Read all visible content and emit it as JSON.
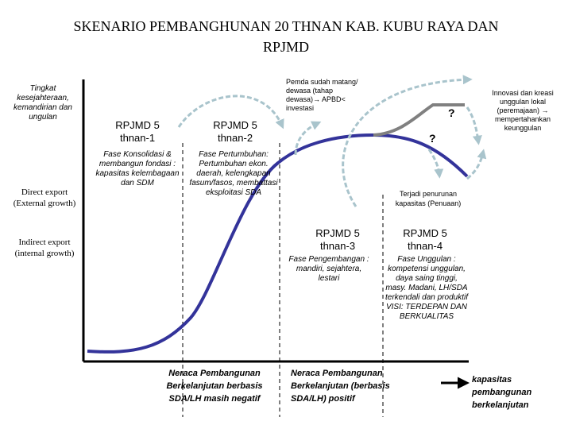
{
  "title_line1": "SKENARIO PEMBANGHUNAN 20 THNAN  KAB. KUBU RAYA DAN",
  "title_line2": "RPJMD",
  "y_axis": {
    "top": "Tingkat kesejahteraan, kemandirian dan ungulan",
    "middle": "Direct export (External growth)",
    "bottom": "Indirect export (internal growth)"
  },
  "stages": [
    {
      "title": "RPJMD 5 thnan-1",
      "desc": "Fase Konsolidasi & membangun fondasi : kapasitas kelembagaan dan SDM"
    },
    {
      "title": "RPJMD 5 thnan-2",
      "desc": "Fase Pertumbuhan: Pertumbuhan ekon. daerah, kelengkapan fasum/fasos, membattasi eksploitasi SDA"
    },
    {
      "title": "RPJMD 5 thnan-3",
      "desc": "Fase Pengembangan : mandiri, sejahtera, lestari"
    },
    {
      "title": "RPJMD 5 thnan-4",
      "desc": "Fase Unggulan : kompetensi unggulan, daya saing tinggi, masy. Madani, LH/SDA terkendali dan produktif VISI: TERDEPAN DAN BERKUALITAS"
    }
  ],
  "annotations": {
    "mature": "Pemda sudah matang/ dewasa (tahap dewasa)→ APBD< investasi",
    "innovation": "Innovasi dan kreasi unggulan lokal (peremajaan) → mempertahankan keunggulan",
    "decline": "Terjadi penurunan kapasitas (Penuaan)",
    "question_mark": "?"
  },
  "bottom_labels": {
    "negative": "Neraca Pembangunan Berkelanjutan berbasis SDA/LH masih negatif",
    "positive": "Neraca Pembangunan Berkelanjutan (berbasis SDA/LH) positif",
    "x_axis": "kapasitas pembangunan berkelanjutan"
  },
  "colors": {
    "curve": "#33339a",
    "innovation_line": "#808080",
    "arrow": "#a9c4cc"
  }
}
